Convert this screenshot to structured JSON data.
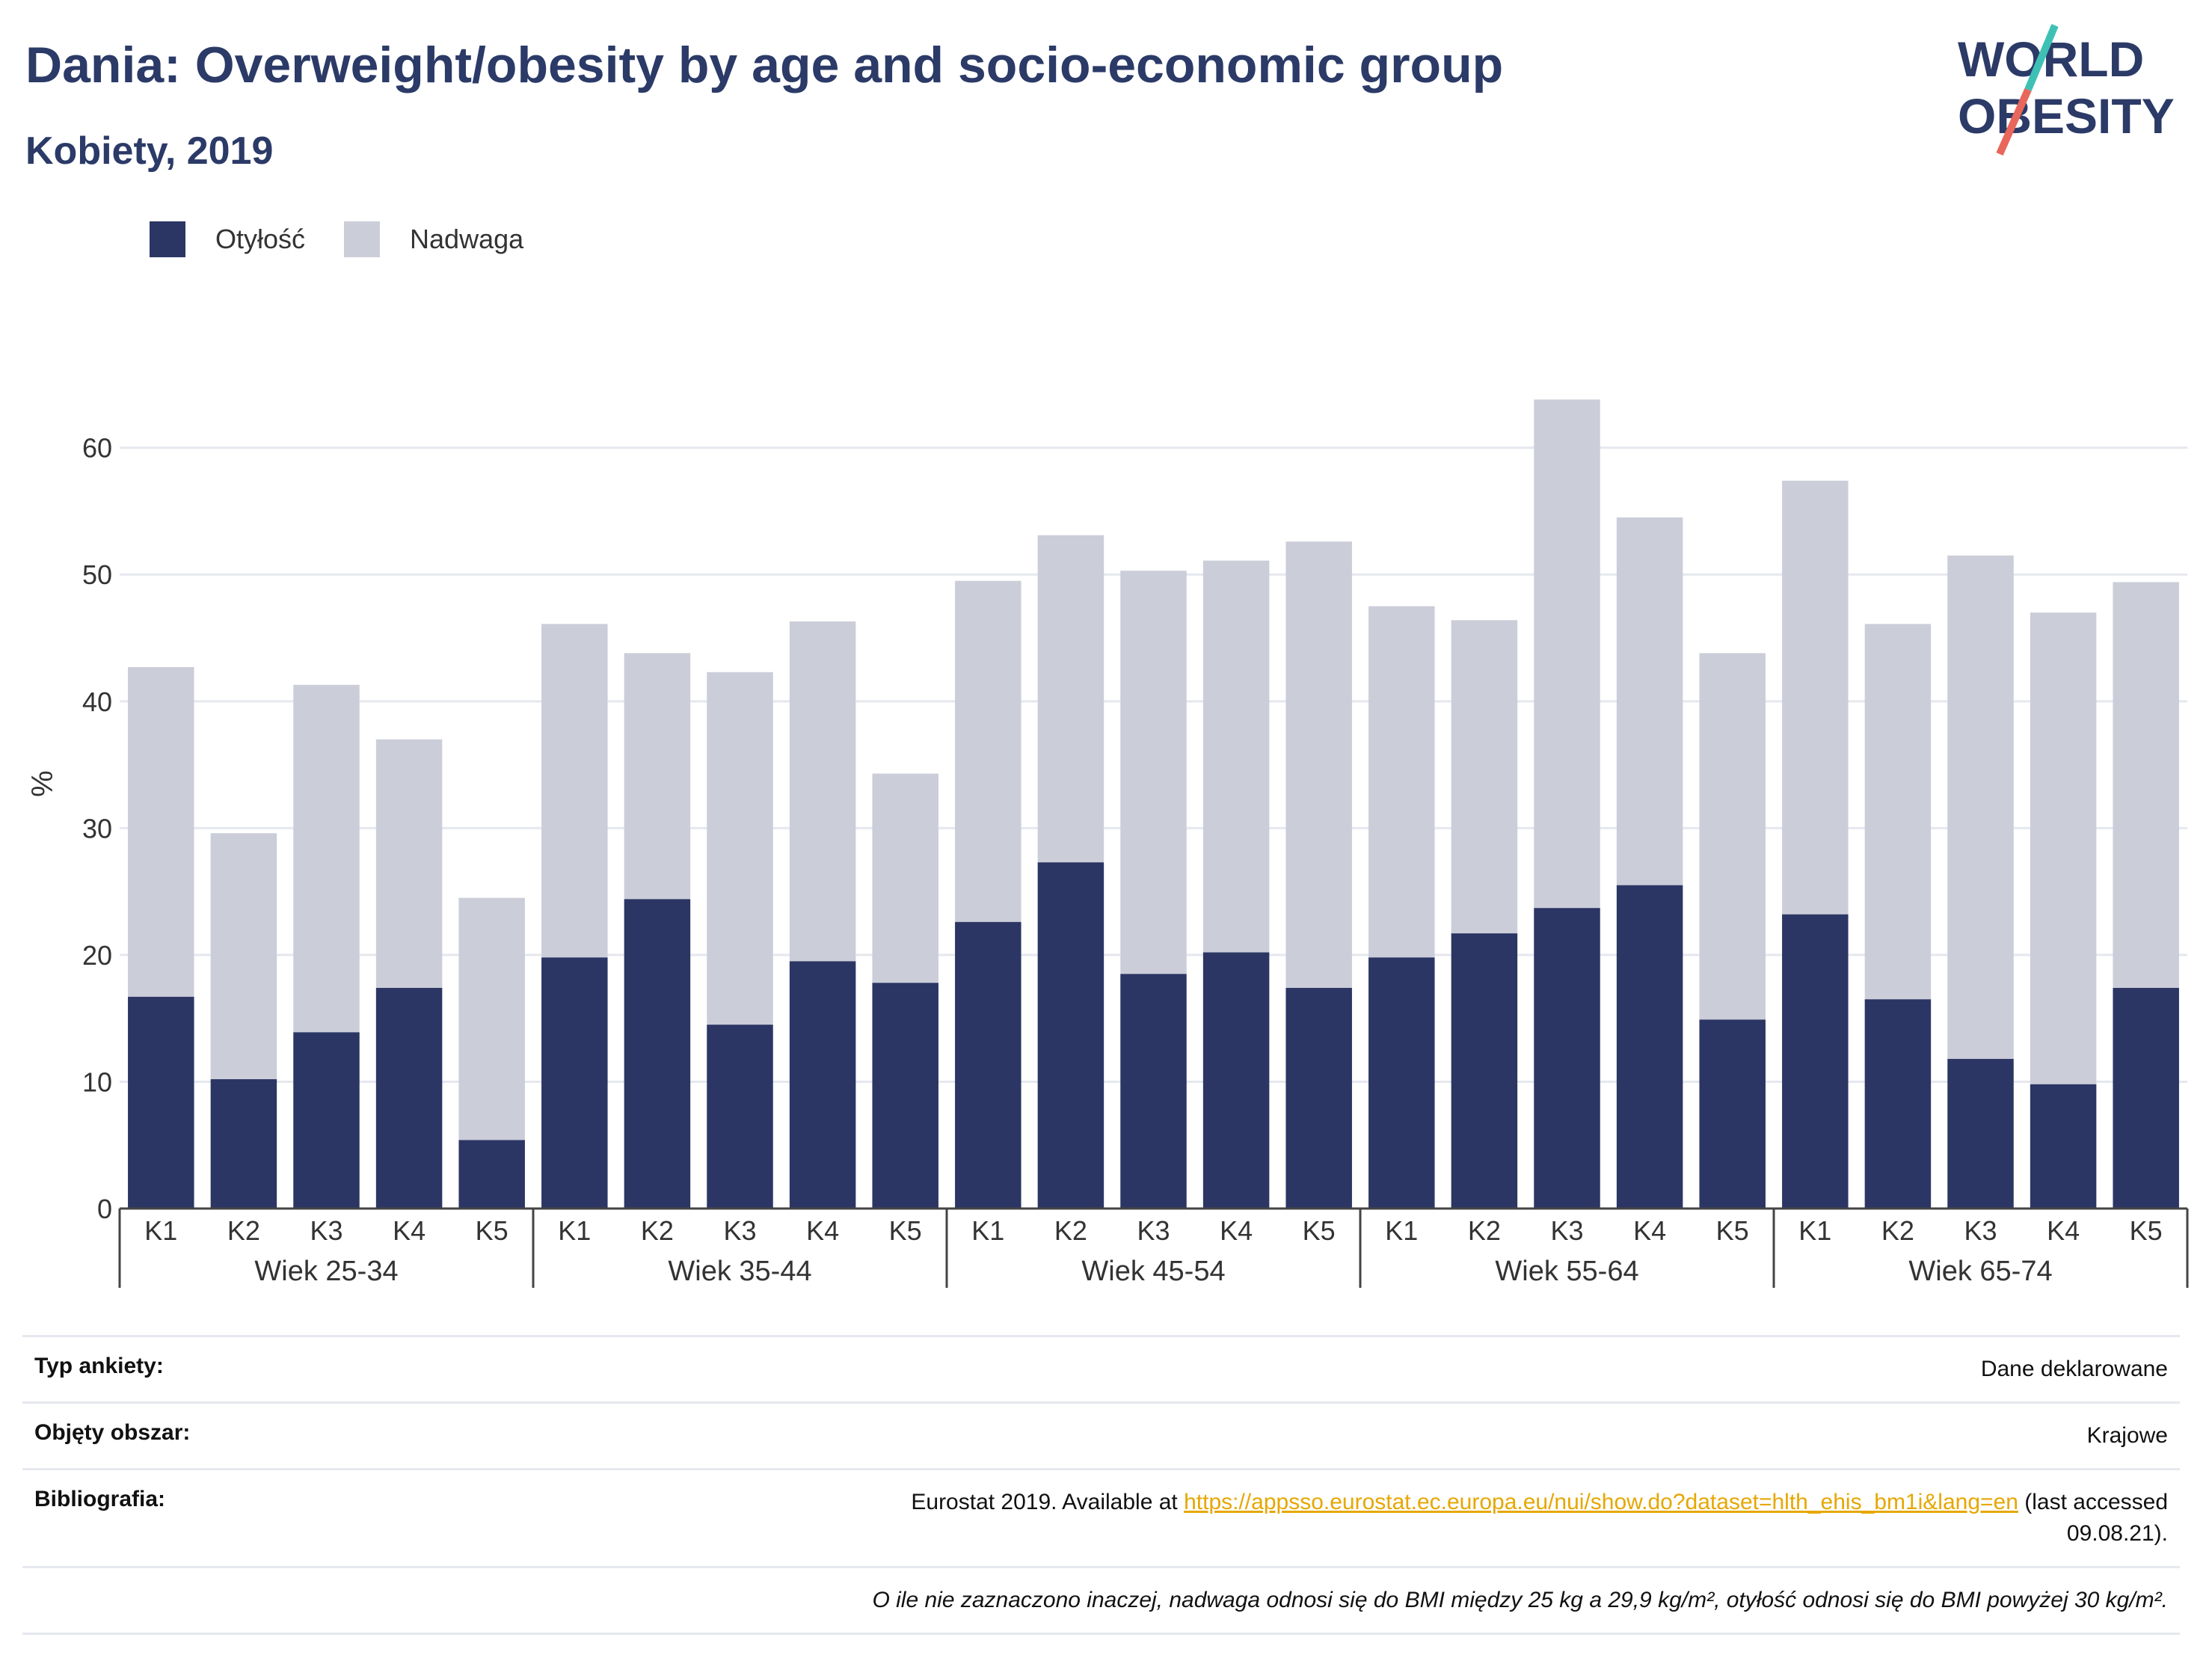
{
  "header": {
    "title": "Dania: Overweight/obesity by age and socio-economic group",
    "subtitle": "Kobiety, 2019"
  },
  "logo": {
    "line1": "WORLD",
    "line2": "OBESITY",
    "colors": {
      "text": "#2b3a67",
      "slash_top": "#3ec1b4",
      "slash_bottom": "#e8665a"
    }
  },
  "legend": [
    {
      "label": "Otyłość",
      "color": "#2b3664"
    },
    {
      "label": "Nadwaga",
      "color": "#cbcdd9"
    }
  ],
  "chart_data": {
    "type": "bar",
    "stacked": true,
    "ylabel": "%",
    "ylim": [
      0,
      67
    ],
    "yticks": [
      0,
      10,
      20,
      30,
      40,
      50,
      60
    ],
    "grid": true,
    "legend_position": "top-left",
    "groups": [
      "Wiek 25-34",
      "Wiek 35-44",
      "Wiek 45-54",
      "Wiek 55-64",
      "Wiek 65-74"
    ],
    "categories": [
      "K1",
      "K2",
      "K3",
      "K4",
      "K5"
    ],
    "series": [
      {
        "name": "Otyłość",
        "color": "#2b3664",
        "values": [
          [
            16.7,
            10.2,
            13.9,
            17.4,
            5.4
          ],
          [
            19.8,
            24.4,
            14.5,
            19.5,
            17.8
          ],
          [
            22.6,
            27.3,
            18.5,
            20.2,
            17.4
          ],
          [
            19.8,
            21.7,
            23.7,
            25.5,
            14.9
          ],
          [
            23.2,
            16.5,
            11.8,
            9.8,
            17.4
          ]
        ]
      },
      {
        "name": "Nadwaga",
        "color": "#cbcdd9",
        "values": [
          [
            26.0,
            19.4,
            27.4,
            19.6,
            19.1
          ],
          [
            26.3,
            19.4,
            27.8,
            26.8,
            16.5
          ],
          [
            26.9,
            25.8,
            31.8,
            30.9,
            35.2
          ],
          [
            27.7,
            24.7,
            40.1,
            29.0,
            28.9
          ],
          [
            34.2,
            29.6,
            39.7,
            37.2,
            32.0
          ]
        ]
      }
    ]
  },
  "info": {
    "survey_type_label": "Typ ankiety:",
    "survey_type_value": "Dane deklarowane",
    "coverage_label": "Objęty obszar:",
    "coverage_value": "Krajowe",
    "bibliography_label": "Bibliografia:",
    "bibliography_prefix": "Eurostat 2019. Available at",
    "bibliography_link": "https://appsso.eurostat.ec.europa.eu/nui/show.do?dataset=hlth_ehis_bm1i&lang=en",
    "bibliography_suffix_1": "(last accessed",
    "bibliography_suffix_2": "09.08.21).",
    "note": "O ile nie zaznaczono inaczej, nadwaga odnosi się do BMI między 25 kg a 29,9 kg/m², otyłość odnosi się do BMI powyżej 30 kg/m²."
  }
}
